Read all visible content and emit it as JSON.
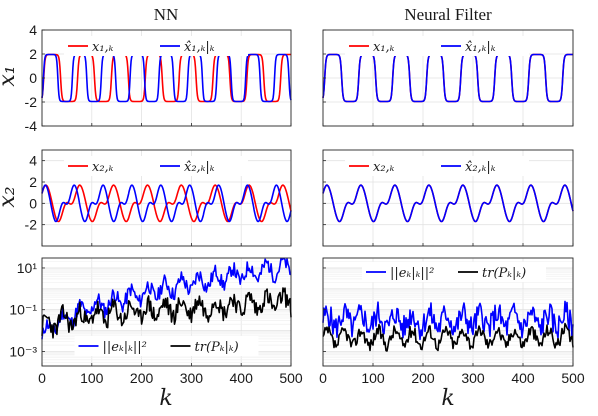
{
  "figure": {
    "col_titles": [
      "NN",
      "Neural Filter"
    ],
    "xlabel": "k",
    "row_ylabels": [
      "x₁",
      "x₂",
      ""
    ]
  },
  "chart_data": [
    {
      "type": "line",
      "panel": "NN-x1",
      "xlim": [
        0,
        500
      ],
      "ylim": [
        -4,
        4
      ],
      "x_ticks": [
        "",
        "",
        "",
        "",
        "",
        ""
      ],
      "y_ticks": [
        "4",
        "2",
        "0",
        "-2",
        "-4"
      ],
      "ylabel": "x₁",
      "xlabel": "",
      "title": "NN",
      "grid": true,
      "legend": "top-left",
      "series": [
        {
          "name": "x₁,ₖ",
          "color": "#ff0000",
          "period": 68,
          "phase": 0,
          "amp": 2.0,
          "shape": "x1"
        },
        {
          "name": "x̂₁,ₖ|ₖ",
          "color": "#0000ff",
          "period": 58,
          "phase": 0,
          "amp": 2.0,
          "shape": "x1"
        }
      ]
    },
    {
      "type": "line",
      "panel": "NF-x1",
      "xlim": [
        0,
        500
      ],
      "ylim": [
        -4,
        4
      ],
      "x_ticks": [
        "",
        "",
        "",
        "",
        "",
        ""
      ],
      "y_ticks": [
        "",
        "",
        "",
        "",
        ""
      ],
      "ylabel": "",
      "xlabel": "",
      "title": "Neural Filter",
      "grid": true,
      "legend": "top-left",
      "series": [
        {
          "name": "x₁,ₖ",
          "color": "#ff0000",
          "period": 68,
          "phase": 0,
          "amp": 2.0,
          "shape": "x1"
        },
        {
          "name": "x̂₁,ₖ|ₖ",
          "color": "#0000ff",
          "period": 68,
          "phase": 0,
          "amp": 2.0,
          "shape": "x1"
        }
      ]
    },
    {
      "type": "line",
      "panel": "NN-x2",
      "xlim": [
        0,
        500
      ],
      "ylim": [
        -4,
        5
      ],
      "x_ticks": [
        "",
        "",
        "",
        "",
        "",
        ""
      ],
      "y_ticks": [
        "4",
        "2",
        "0",
        "-2"
      ],
      "ylabel": "x₂",
      "xlabel": "",
      "title": "",
      "grid": true,
      "legend": "top-left",
      "series": [
        {
          "name": "x₂,ₖ",
          "color": "#ff0000",
          "period": 68,
          "phase": 0,
          "amp": 2.6,
          "shape": "x2"
        },
        {
          "name": "x̂₂,ₖ|ₖ",
          "color": "#0000ff",
          "period": 58,
          "phase": 0,
          "amp": 2.6,
          "shape": "x2"
        }
      ]
    },
    {
      "type": "line",
      "panel": "NF-x2",
      "xlim": [
        0,
        500
      ],
      "ylim": [
        -4,
        5
      ],
      "x_ticks": [
        "",
        "",
        "",
        "",
        "",
        ""
      ],
      "y_ticks": [
        "",
        "",
        "",
        ""
      ],
      "ylabel": "",
      "xlabel": "",
      "title": "",
      "grid": true,
      "legend": "top-left",
      "series": [
        {
          "name": "x₂,ₖ",
          "color": "#ff0000",
          "period": 68,
          "phase": 0,
          "amp": 2.6,
          "shape": "x2"
        },
        {
          "name": "x̂₂,ₖ|ₖ",
          "color": "#0000ff",
          "period": 68,
          "phase": 0,
          "amp": 2.6,
          "shape": "x2"
        }
      ]
    },
    {
      "type": "line",
      "panel": "NN-err",
      "yscale": "log",
      "xlim": [
        0,
        500
      ],
      "ylim": [
        0.0002,
        30
      ],
      "x_ticks": [
        "0",
        "100",
        "200",
        "300",
        "400",
        "500"
      ],
      "y_ticks": [
        "10¹",
        "10⁻¹",
        "10⁻³"
      ],
      "ylabel": "",
      "xlabel": "k",
      "title": "",
      "grid": true,
      "legend": "bottom-center",
      "series": [
        {
          "name": "||eₖ|ₖ||²",
          "color": "#0000ff",
          "start": 0.003,
          "end": 12,
          "spread": 0.35,
          "seed": 11
        },
        {
          "name": "tr(Pₖ|ₖ)",
          "color": "#000000",
          "start": 0.012,
          "end": 0.25,
          "spread": 0.45,
          "seed": 23
        }
      ]
    },
    {
      "type": "line",
      "panel": "NF-err",
      "yscale": "log",
      "xlim": [
        0,
        500
      ],
      "ylim": [
        0.0002,
        30
      ],
      "x_ticks": [
        "0",
        "100",
        "200",
        "300",
        "400",
        "500"
      ],
      "y_ticks": [
        "",
        "",
        ""
      ],
      "ylabel": "",
      "xlabel": "k",
      "title": "",
      "grid": true,
      "legend": "top-center",
      "series": [
        {
          "name": "||eₖ|ₖ||²",
          "color": "#0000ff",
          "start": 0.03,
          "end": 0.03,
          "spread": 0.6,
          "seed": 5
        },
        {
          "name": "tr(Pₖ|ₖ)",
          "color": "#000000",
          "start": 0.004,
          "end": 0.005,
          "spread": 0.3,
          "seed": 37
        }
      ]
    }
  ]
}
